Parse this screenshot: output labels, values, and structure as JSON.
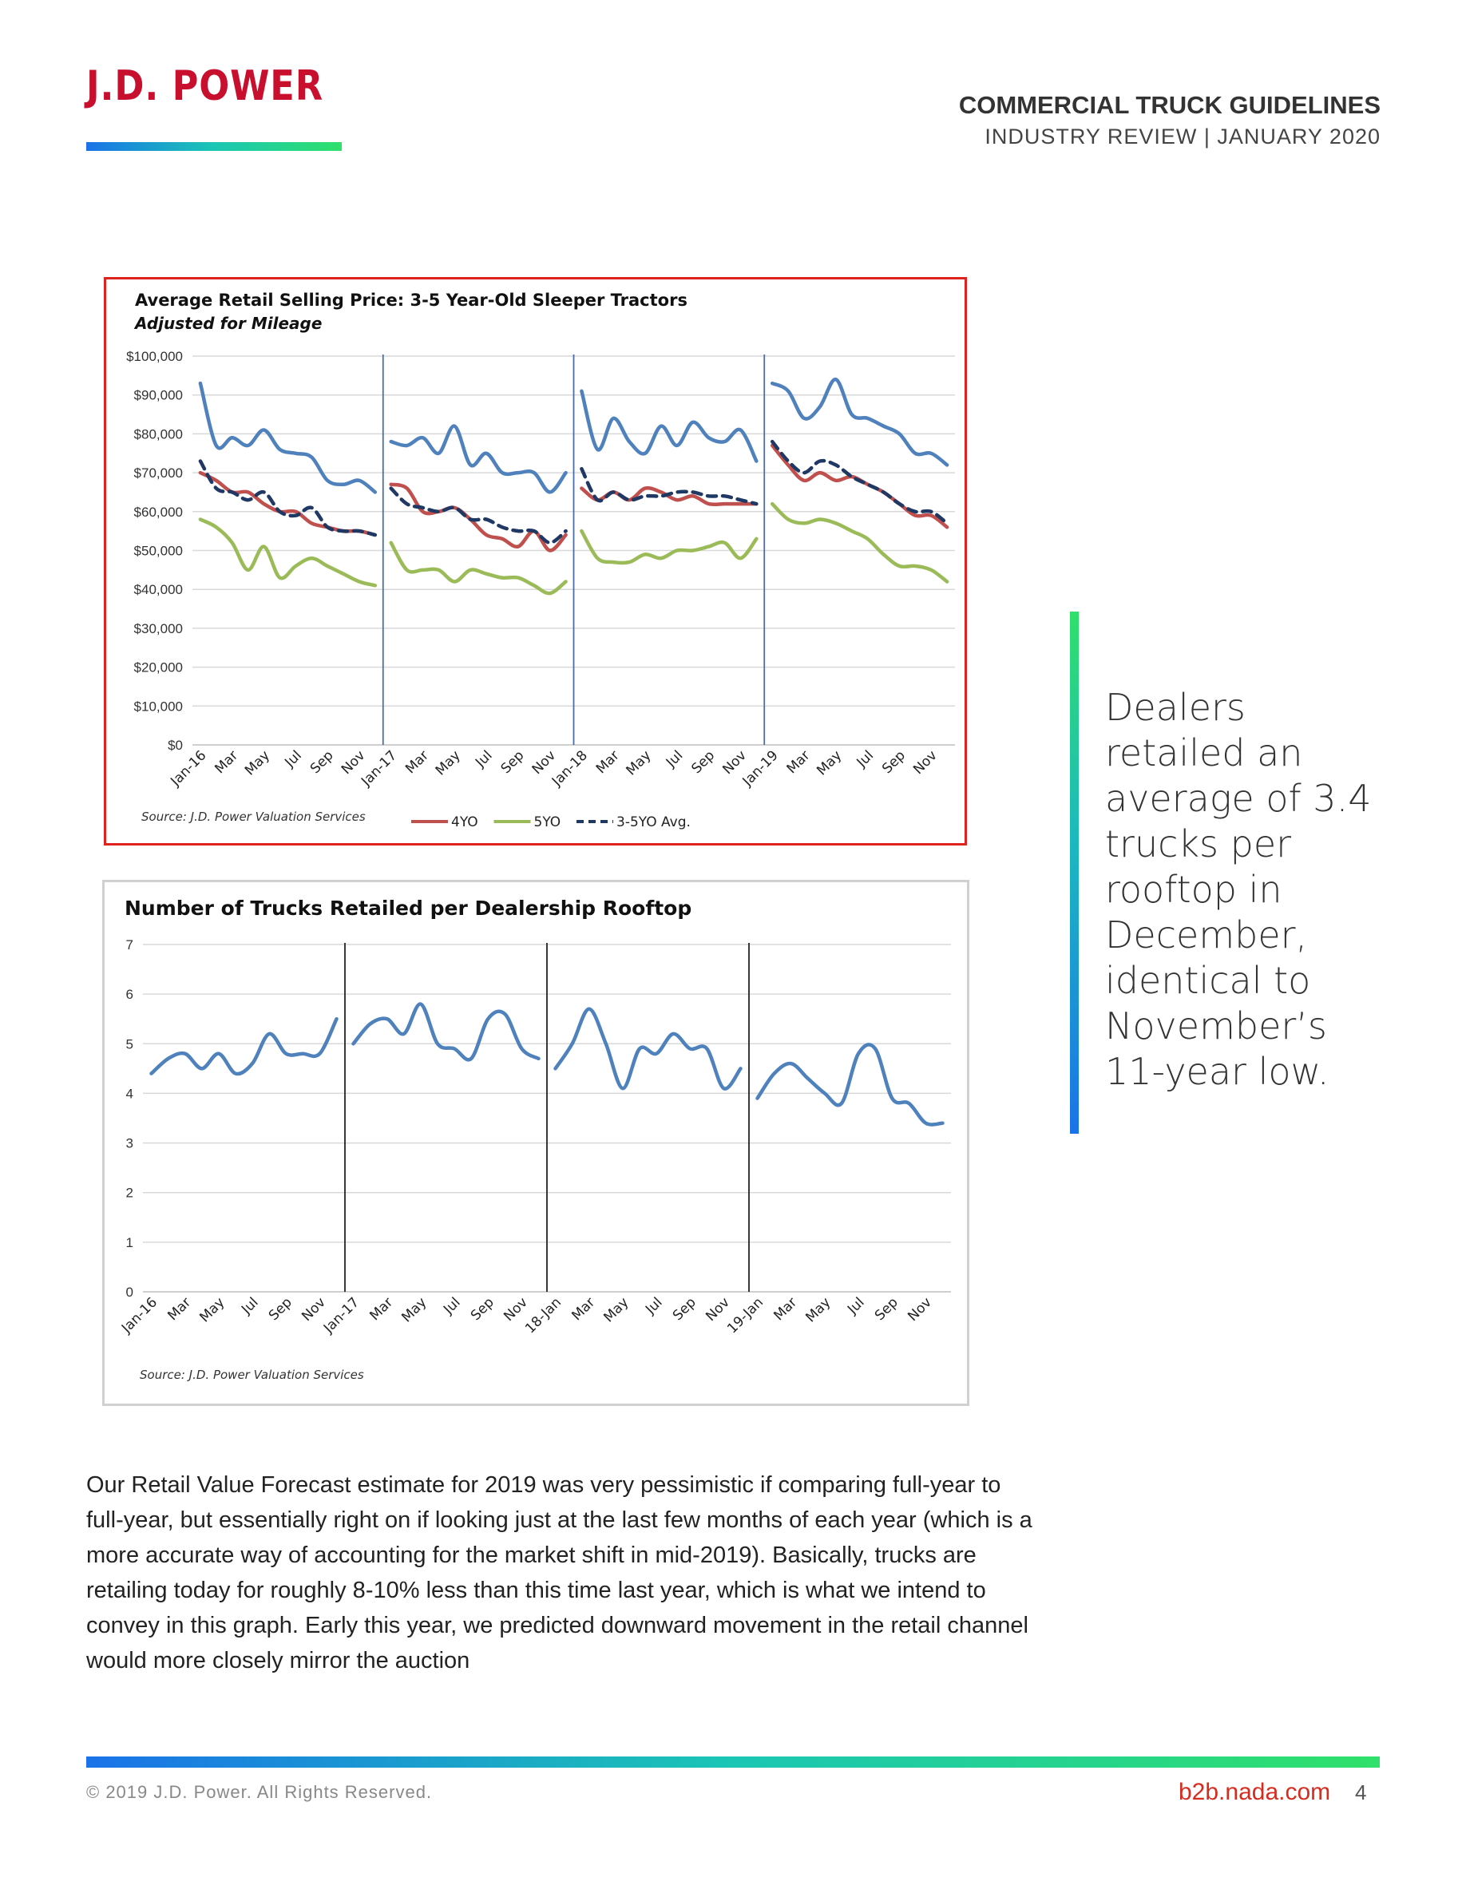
{
  "header": {
    "logo": "J.D. POWER",
    "title": "COMMERCIAL TRUCK GUIDELINES",
    "subtitle": "INDUSTRY REVIEW | JANUARY 2020"
  },
  "chart_data": [
    {
      "type": "line",
      "title": "Average Retail Selling Price: 3-5 Year-Old Sleeper Tractors",
      "subtitle": "Adjusted for Mileage",
      "source": "Source: J.D. Power Valuation Services",
      "ylim": [
        0,
        100000
      ],
      "yticks": [
        "$0",
        "$10,000",
        "$20,000",
        "$30,000",
        "$40,000",
        "$50,000",
        "$60,000",
        "$70,000",
        "$80,000",
        "$90,000",
        "$100,000"
      ],
      "xtick_labels": [
        "Jan-16",
        "Mar",
        "May",
        "Jul",
        "Sep",
        "Nov",
        "Jan-17",
        "Mar",
        "May",
        "Jul",
        "Sep",
        "Nov",
        "Jan-18",
        "Mar",
        "May",
        "Jul",
        "Sep",
        "Nov",
        "Jan-19",
        "Mar",
        "May",
        "Jul",
        "Sep",
        "Nov"
      ],
      "legend_position": "bottom",
      "grid": true,
      "series": [
        {
          "name": "",
          "color": "#4f81bd",
          "style": "solid",
          "segments": [
            [
              93000,
              77000,
              79000,
              77000,
              81000,
              76000,
              75000,
              74000,
              68000,
              67000,
              68000,
              65000
            ],
            [
              78000,
              77000,
              79000,
              75000,
              82000,
              72000,
              75000,
              70000,
              70000,
              70000,
              65000,
              70000
            ],
            [
              91000,
              76000,
              84000,
              78000,
              75000,
              82000,
              77000,
              83000,
              79000,
              78000,
              81000,
              73000
            ],
            [
              93000,
              91000,
              84000,
              87000,
              94000,
              85000,
              84000,
              82000,
              80000,
              75000,
              75000,
              72000
            ]
          ]
        },
        {
          "name": "4YO",
          "color": "#c0504d",
          "style": "solid",
          "segments": [
            [
              70000,
              68000,
              65000,
              65000,
              62000,
              60000,
              60000,
              57000,
              56000,
              55000,
              55000,
              54000
            ],
            [
              67000,
              66000,
              60000,
              60000,
              61000,
              58000,
              54000,
              53000,
              51000,
              55000,
              50000,
              54000
            ],
            [
              66000,
              63000,
              65000,
              63000,
              66000,
              65000,
              63000,
              64000,
              62000,
              62000,
              62000,
              62000
            ],
            [
              77000,
              72000,
              68000,
              70000,
              68000,
              69000,
              67000,
              65000,
              62000,
              59000,
              59000,
              56000
            ]
          ]
        },
        {
          "name": "5YO",
          "color": "#9bbb59",
          "style": "solid",
          "segments": [
            [
              58000,
              56000,
              52000,
              45000,
              51000,
              43000,
              46000,
              48000,
              46000,
              44000,
              42000,
              41000
            ],
            [
              52000,
              45000,
              45000,
              45000,
              42000,
              45000,
              44000,
              43000,
              43000,
              41000,
              39000,
              42000
            ],
            [
              55000,
              48000,
              47000,
              47000,
              49000,
              48000,
              50000,
              50000,
              51000,
              52000,
              48000,
              53000
            ],
            [
              62000,
              58000,
              57000,
              58000,
              57000,
              55000,
              53000,
              49000,
              46000,
              46000,
              45000,
              42000
            ]
          ]
        },
        {
          "name": "3-5YO Avg.",
          "color": "#1f3864",
          "style": "dashed",
          "segments": [
            [
              73000,
              66000,
              65000,
              63000,
              65000,
              60000,
              59000,
              61000,
              56000,
              55000,
              55000,
              54000
            ],
            [
              66000,
              62000,
              61000,
              60000,
              61000,
              58000,
              58000,
              56000,
              55000,
              55000,
              52000,
              55000
            ],
            [
              71000,
              63000,
              65000,
              63000,
              64000,
              64000,
              65000,
              65000,
              64000,
              64000,
              63000,
              62000
            ],
            [
              78000,
              73000,
              70000,
              73000,
              72000,
              69000,
              67000,
              65000,
              62000,
              60000,
              60000,
              57000
            ]
          ]
        }
      ]
    },
    {
      "type": "line",
      "title": "Number of Trucks Retailed per Dealership Rooftop",
      "source": "Source: J.D. Power Valuation Services",
      "ylim": [
        0,
        7
      ],
      "yticks": [
        "0",
        "1",
        "2",
        "3",
        "4",
        "5",
        "6",
        "7"
      ],
      "xtick_labels": [
        "Jan-16",
        "Mar",
        "May",
        "Jul",
        "Sep",
        "Nov",
        "Jan-17",
        "Mar",
        "May",
        "Jul",
        "Sep",
        "Nov",
        "18-Jan",
        "Mar",
        "May",
        "Jul",
        "Sep",
        "Nov",
        "19-Jan",
        "Mar",
        "May",
        "Jul",
        "Sep",
        "Nov"
      ],
      "grid": true,
      "series": [
        {
          "name": "",
          "color": "#4f81bd",
          "style": "solid",
          "segments": [
            [
              4.4,
              4.7,
              4.8,
              4.5,
              4.8,
              4.4,
              4.6,
              5.2,
              4.8,
              4.8,
              4.8,
              5.5
            ],
            [
              5.0,
              5.4,
              5.5,
              5.2,
              5.8,
              5.0,
              4.9,
              4.7,
              5.5,
              5.6,
              4.9,
              4.7
            ],
            [
              4.5,
              5.0,
              5.7,
              5.0,
              4.1,
              4.9,
              4.8,
              5.2,
              4.9,
              4.9,
              4.1,
              4.5
            ],
            [
              3.9,
              4.4,
              4.6,
              4.3,
              4.0,
              3.8,
              4.8,
              4.9,
              3.9,
              3.8,
              3.4,
              3.4
            ]
          ]
        }
      ]
    }
  ],
  "callout": "Dealers retailed an average of 3.4 trucks per rooftop in December, identical to November’s 11-year low.",
  "body": "Our Retail Value Forecast estimate for 2019 was very pessimistic if comparing full-year to full-year, but essentially right on if looking just at the last few months of each year (which is a more accurate way of accounting for the market shift in mid-2019). Basically, trucks are retailing today for roughly 8-10% less than this time last year, which is what we intend to convey in this graph. Early this year, we predicted downward movement in the retail channel would more closely mirror the auction",
  "footer": {
    "copyright": "© 2019 J.D. Power. All Rights Reserved.",
    "site": "b2b.nada.com",
    "page": "4"
  }
}
